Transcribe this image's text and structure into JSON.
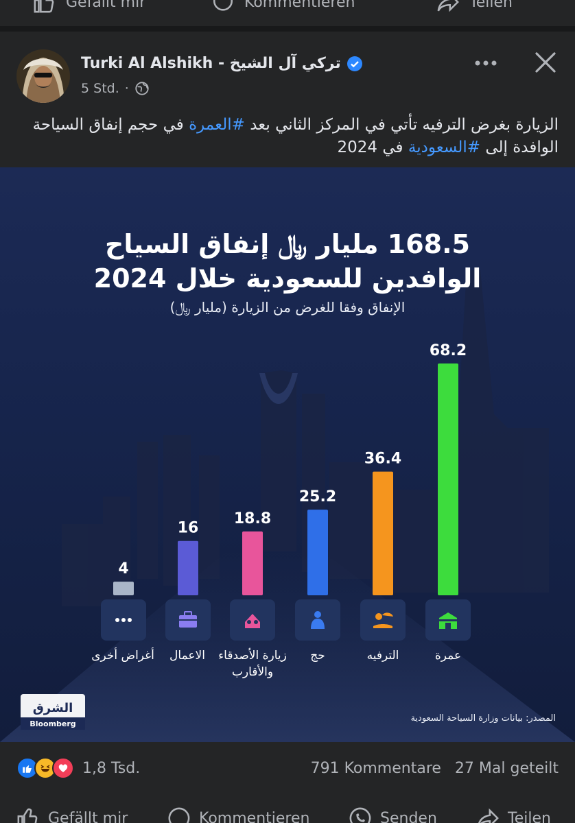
{
  "top_actions": {
    "like": "Gefällt mir",
    "comment": "Kommentieren",
    "share": "Teilen"
  },
  "post": {
    "author": "Turki Al Alshikh - تركي آل الشيخ",
    "time": "5 Std.",
    "caption_plain_1": "الزيارة بغرض الترفيه تأتي في المركز الثاني بعد ",
    "caption_tag_1": "#العمرة",
    "caption_plain_2": " في حجم إنفاق السياحة الوافدة إلى ",
    "caption_tag_2": "#السعودية",
    "caption_plain_3": " في 2024"
  },
  "infographic": {
    "title_line1": "168.5 مليار ﷼ إنفاق السياح",
    "title_line2": "الوافدين للسعودية خلال 2024",
    "subtitle": "الإنفاق وفقا للغرض من الزيارة (مليار ﷼)",
    "source": "المصدر: بيانات وزارة السياحة السعودية",
    "logo_top": "الشرق",
    "logo_bottom": "Bloomberg",
    "categories": [
      {
        "label": "أغراض أخرى",
        "icon": "dots-icon"
      },
      {
        "label": "الاعمال",
        "icon": "briefcase-icon"
      },
      {
        "label": "زيارة الأصدقاء والأقارب",
        "icon": "people-icon"
      },
      {
        "label": "حج",
        "icon": "pilgrim-icon"
      },
      {
        "label": "الترفيه",
        "icon": "beach-umbrella-icon"
      },
      {
        "label": "عمرة",
        "icon": "kaaba-icon"
      }
    ]
  },
  "chart_data": {
    "type": "bar",
    "categories": [
      "أغراض أخرى",
      "الاعمال",
      "زيارة الأصدقاء والأقارب",
      "حج",
      "الترفيه",
      "عمرة"
    ],
    "values": [
      4,
      16,
      18.8,
      25.2,
      36.4,
      68.2
    ],
    "value_labels": [
      "4",
      "16",
      "18.8",
      "25.2",
      "36.4",
      "68.2"
    ],
    "colors": [
      "#aab6c8",
      "#5b5bd6",
      "#e8559b",
      "#2f6fe8",
      "#f5951e",
      "#3ddc3d"
    ],
    "title": "168.5 مليار ﷼ إنفاق السياح الوافدين للسعودية خلال 2024",
    "ylim": [
      0,
      68.2
    ]
  },
  "footer": {
    "reaction_count": "1,8 Tsd.",
    "comments": "791 Kommentare",
    "shares": "27 Mal geteilt",
    "like": "Gefällt mir",
    "comment": "Kommentieren",
    "send": "Senden",
    "share": "Teilen"
  }
}
